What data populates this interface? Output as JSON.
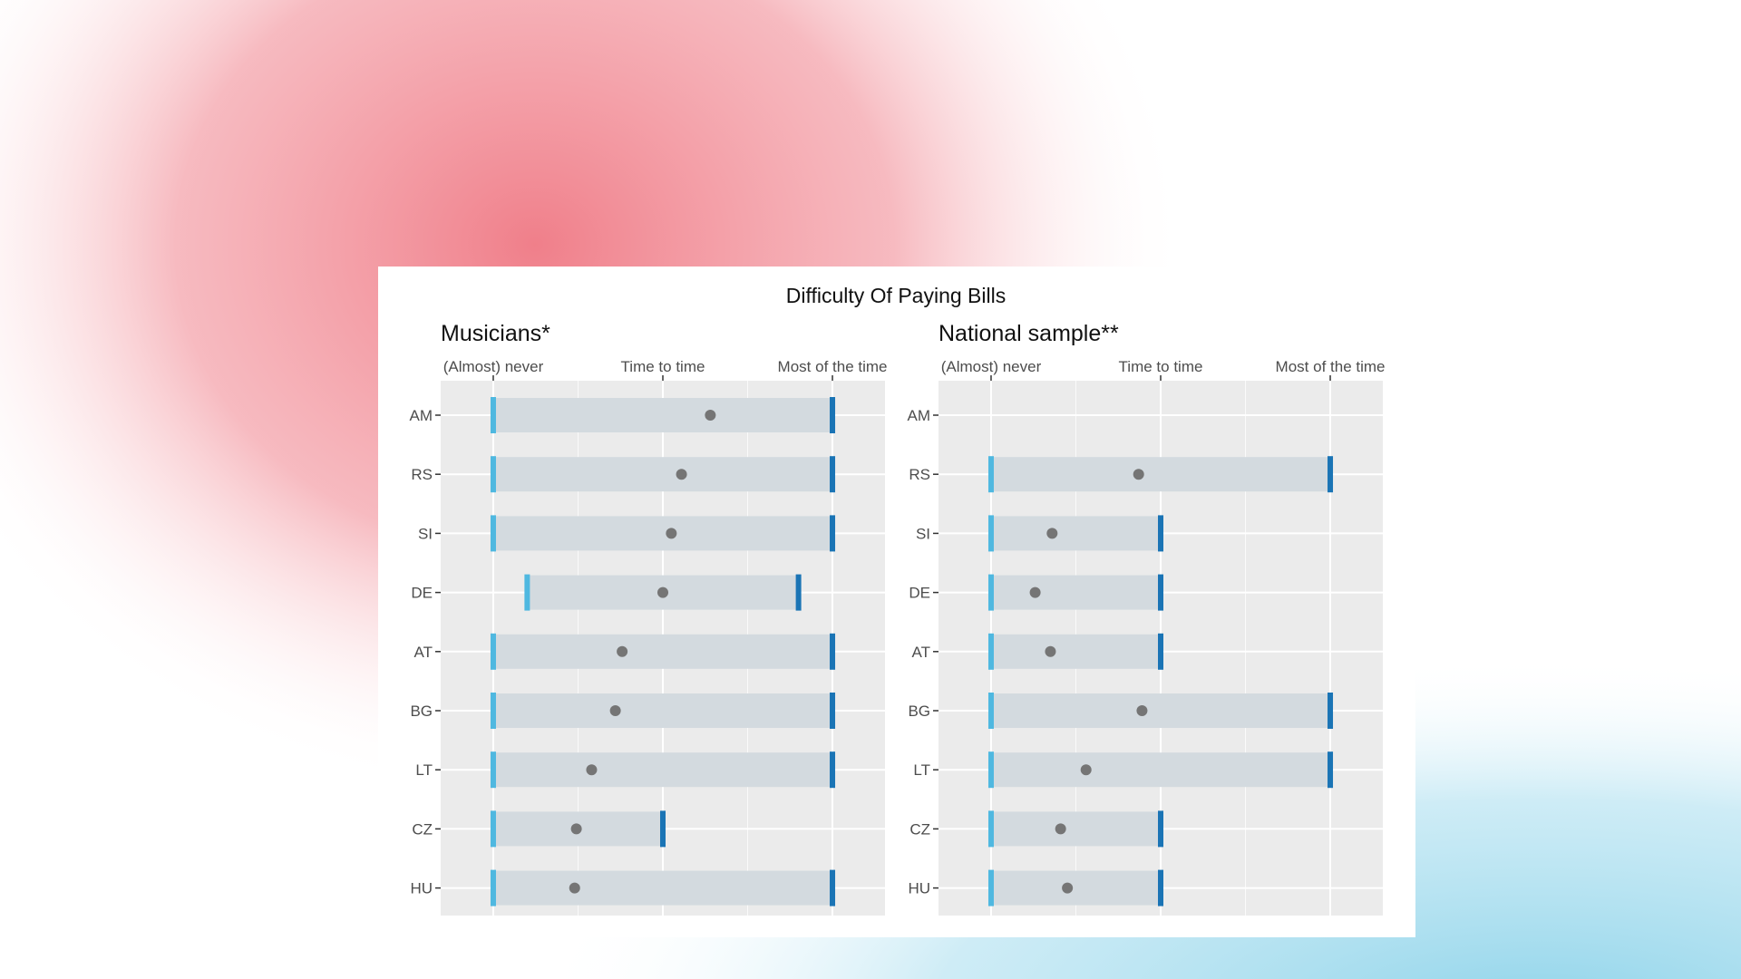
{
  "chart_data": {
    "type": "range-dot",
    "title": "Difficulty Of Paying Bills",
    "x_ticks": [
      "(Almost) never",
      "Time to time",
      "Most of the time"
    ],
    "x_scale": "ordinal 1 to 3",
    "xlim": [
      0.69,
      3.31
    ],
    "categories": [
      "AM",
      "RS",
      "SI",
      "DE",
      "AT",
      "BG",
      "LT",
      "CZ",
      "HU"
    ],
    "grid": true,
    "colors": {
      "panel_bg": "#ebebeb",
      "gridline": "#ffffff",
      "range_band": "#d3dadf",
      "min_marker": "#4fb8e0",
      "max_marker": "#1a74b5",
      "dot": "#757575",
      "background_red": "#f07f8a",
      "background_blue": "#8fd4ea"
    },
    "panels": [
      {
        "title": "Musicians*",
        "rows": [
          {
            "category": "AM",
            "min": 1,
            "max": 3,
            "mean": 2.28
          },
          {
            "category": "RS",
            "min": 1,
            "max": 3,
            "mean": 2.11
          },
          {
            "category": "SI",
            "min": 1,
            "max": 3,
            "mean": 2.05
          },
          {
            "category": "DE",
            "min": 1.2,
            "max": 2.8,
            "mean": 2.0
          },
          {
            "category": "AT",
            "min": 1,
            "max": 3,
            "mean": 1.76
          },
          {
            "category": "BG",
            "min": 1,
            "max": 3,
            "mean": 1.72
          },
          {
            "category": "LT",
            "min": 1,
            "max": 3,
            "mean": 1.58
          },
          {
            "category": "CZ",
            "min": 1,
            "max": 2,
            "mean": 1.49
          },
          {
            "category": "HU",
            "min": 1,
            "max": 3,
            "mean": 1.48
          }
        ]
      },
      {
        "title": "National sample**",
        "rows": [
          {
            "category": "AM",
            "min": null,
            "max": null,
            "mean": null
          },
          {
            "category": "RS",
            "min": 1,
            "max": 3,
            "mean": 1.87
          },
          {
            "category": "SI",
            "min": 1,
            "max": 2,
            "mean": 1.36
          },
          {
            "category": "DE",
            "min": 1,
            "max": 2,
            "mean": 1.26
          },
          {
            "category": "AT",
            "min": 1,
            "max": 2,
            "mean": 1.35
          },
          {
            "category": "BG",
            "min": 1,
            "max": 3,
            "mean": 1.89
          },
          {
            "category": "LT",
            "min": 1,
            "max": 3,
            "mean": 1.56
          },
          {
            "category": "CZ",
            "min": 1,
            "max": 2,
            "mean": 1.41
          },
          {
            "category": "HU",
            "min": 1,
            "max": 2,
            "mean": 1.45
          }
        ]
      }
    ]
  }
}
